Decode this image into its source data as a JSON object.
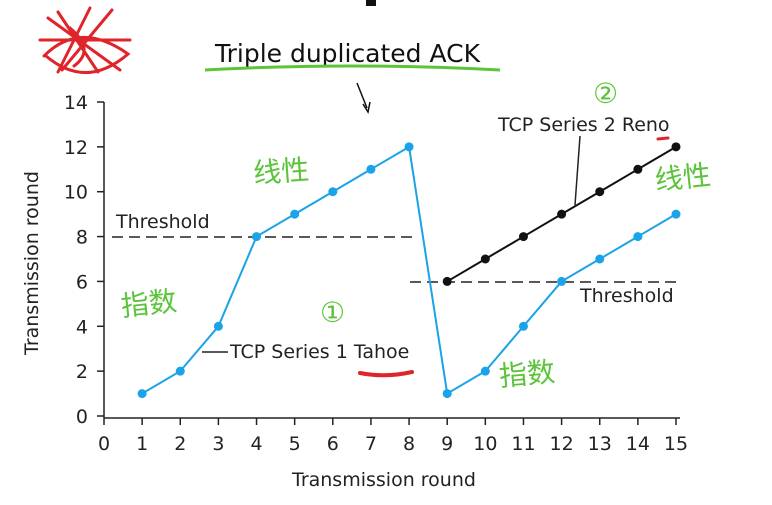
{
  "chart_data": {
    "type": "line",
    "title": "Triple duplicated ACK",
    "xlabel": "Transmission round",
    "ylabel": "Transmission round",
    "xlim": [
      0,
      15
    ],
    "ylim": [
      0,
      14
    ],
    "x_ticks": [
      0,
      1,
      2,
      3,
      4,
      5,
      6,
      7,
      8,
      9,
      10,
      11,
      12,
      13,
      14,
      15
    ],
    "y_ticks": [
      0,
      2,
      4,
      6,
      8,
      10,
      12,
      14
    ],
    "grid": false,
    "series": [
      {
        "name": "TCP Series 1 Tahoe",
        "color": "#1aa3e8",
        "x": [
          1,
          2,
          3,
          4,
          5,
          6,
          7,
          8,
          9,
          10,
          11,
          12,
          13,
          14,
          15
        ],
        "y": [
          1,
          2,
          4,
          8,
          9,
          10,
          11,
          12,
          1,
          2,
          4,
          6,
          7,
          8,
          9
        ]
      },
      {
        "name": "TCP Series 2 Reno",
        "color": "#111111",
        "x": [
          9,
          10,
          11,
          12,
          13,
          14,
          15
        ],
        "y": [
          6,
          7,
          8,
          9,
          10,
          11,
          12
        ]
      }
    ],
    "thresholds": [
      {
        "label": "Threshold",
        "y": 8,
        "x_range": [
          0,
          8
        ]
      },
      {
        "label": "Threshold",
        "y": 6,
        "x_range": [
          9,
          15
        ]
      }
    ],
    "handwritten_notes": [
      "线性",
      "指数",
      "①",
      "②",
      "线性",
      "指数"
    ]
  },
  "colors": {
    "tahoe": "#1aa3e8",
    "reno": "#111111",
    "ink_green": "#5cc43a",
    "ink_red": "#e0252a"
  }
}
